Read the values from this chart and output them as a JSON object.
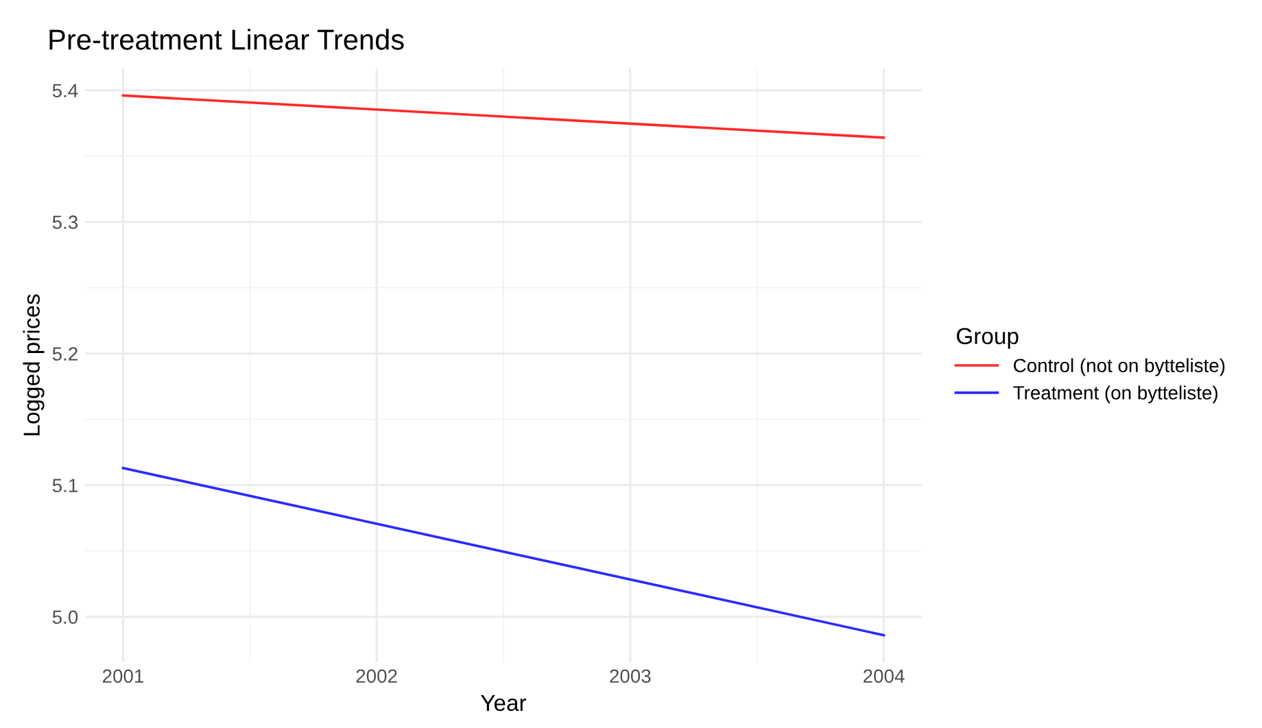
{
  "chart_data": {
    "type": "line",
    "title": "Pre-treatment Linear Trends",
    "xlabel": "Year",
    "ylabel": "Logged prices",
    "legend_title": "Group",
    "x": [
      2001,
      2004
    ],
    "series": [
      {
        "name": "Control (not on bytteliste)",
        "color": "#ff2a2a",
        "values": [
          5.396,
          5.364
        ]
      },
      {
        "name": "Treatment (on bytteliste)",
        "color": "#2a2aff",
        "values": [
          5.113,
          4.986
        ]
      }
    ],
    "xlim": [
      2000.85,
      2004.15
    ],
    "xticks": [
      2001,
      2002,
      2003,
      2004
    ],
    "ylim": [
      4.9655,
      5.4165
    ],
    "yticks": [
      {
        "value": 5.0,
        "label": "5.0"
      },
      {
        "value": 5.1,
        "label": "5.1"
      },
      {
        "value": 5.2,
        "label": "5.2"
      },
      {
        "value": 5.3,
        "label": "5.3"
      },
      {
        "value": 5.4,
        "label": "5.4"
      }
    ],
    "grid": true,
    "legend": "right",
    "marker": "none",
    "line_style": "solid"
  }
}
